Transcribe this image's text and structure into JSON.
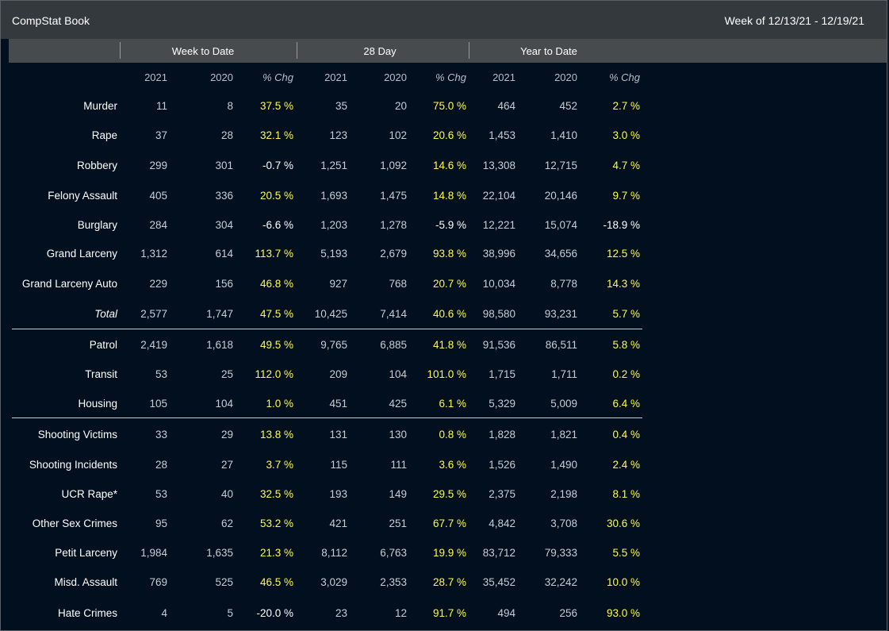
{
  "header": {
    "title": "CompStat Book",
    "week_range": "Week of 12/13/21 - 12/19/21"
  },
  "groups": [
    "Week to Date",
    "28 Day",
    "Year to Date"
  ],
  "columns": [
    "2021",
    "2020",
    "% Chg",
    "2021",
    "2020",
    "% Chg",
    "2021",
    "2020",
    "% Chg"
  ],
  "rows": [
    {
      "label": "Murder",
      "values": [
        "11",
        "8",
        "37.5 %",
        "35",
        "20",
        "75.0 %",
        "464",
        "452",
        "2.7 %"
      ]
    },
    {
      "label": "Rape",
      "values": [
        "37",
        "28",
        "32.1 %",
        "123",
        "102",
        "20.6 %",
        "1,453",
        "1,410",
        "3.0 %"
      ]
    },
    {
      "label": "Robbery",
      "values": [
        "299",
        "301",
        "-0.7 %",
        "1,251",
        "1,092",
        "14.6 %",
        "13,308",
        "12,715",
        "4.7 %"
      ]
    },
    {
      "label": "Felony Assault",
      "values": [
        "405",
        "336",
        "20.5 %",
        "1,693",
        "1,475",
        "14.8 %",
        "22,104",
        "20,146",
        "9.7 %"
      ]
    },
    {
      "label": "Burglary",
      "values": [
        "284",
        "304",
        "-6.6 %",
        "1,203",
        "1,278",
        "-5.9 %",
        "12,221",
        "15,074",
        "-18.9 %"
      ]
    },
    {
      "label": "Grand Larceny",
      "values": [
        "1,312",
        "614",
        "113.7 %",
        "5,193",
        "2,679",
        "93.8 %",
        "38,996",
        "34,656",
        "12.5 %"
      ]
    },
    {
      "label": "Grand Larceny Auto",
      "values": [
        "229",
        "156",
        "46.8 %",
        "927",
        "768",
        "20.7 %",
        "10,034",
        "8,778",
        "14.3 %"
      ]
    },
    {
      "label": "Total",
      "values": [
        "2,577",
        "1,747",
        "47.5 %",
        "10,425",
        "7,414",
        "40.6 %",
        "98,580",
        "93,231",
        "5.7 %"
      ]
    },
    {
      "label": "Patrol",
      "values": [
        "2,419",
        "1,618",
        "49.5 %",
        "9,765",
        "6,885",
        "41.8 %",
        "91,536",
        "86,511",
        "5.8 %"
      ]
    },
    {
      "label": "Transit",
      "values": [
        "53",
        "25",
        "112.0 %",
        "209",
        "104",
        "101.0 %",
        "1,715",
        "1,711",
        "0.2 %"
      ]
    },
    {
      "label": "Housing",
      "values": [
        "105",
        "104",
        "1.0 %",
        "451",
        "425",
        "6.1 %",
        "5,329",
        "5,009",
        "6.4 %"
      ]
    },
    {
      "label": "Shooting Victims",
      "values": [
        "33",
        "29",
        "13.8 %",
        "131",
        "130",
        "0.8 %",
        "1,828",
        "1,821",
        "0.4 %"
      ]
    },
    {
      "label": "Shooting Incidents",
      "values": [
        "28",
        "27",
        "3.7 %",
        "115",
        "111",
        "3.6 %",
        "1,526",
        "1,490",
        "2.4 %"
      ]
    },
    {
      "label": "UCR Rape*",
      "values": [
        "53",
        "40",
        "32.5 %",
        "193",
        "149",
        "29.5 %",
        "2,375",
        "2,198",
        "8.1 %"
      ]
    },
    {
      "label": "Other Sex Crimes",
      "values": [
        "95",
        "62",
        "53.2 %",
        "421",
        "251",
        "67.7 %",
        "4,842",
        "3,708",
        "30.6 %"
      ]
    },
    {
      "label": "Petit Larceny",
      "values": [
        "1,984",
        "1,635",
        "21.3 %",
        "8,112",
        "6,763",
        "19.9 %",
        "83,712",
        "79,333",
        "5.5 %"
      ]
    },
    {
      "label": "Misd. Assault",
      "values": [
        "769",
        "525",
        "46.5 %",
        "3,029",
        "2,353",
        "28.7 %",
        "35,452",
        "32,242",
        "10.0 %"
      ]
    },
    {
      "label": "Hate Crimes",
      "values": [
        "4",
        "5",
        "-20.0 %",
        "23",
        "12",
        "91.7 %",
        "494",
        "256",
        "93.0 %"
      ]
    }
  ],
  "colors": {
    "background": "#020f1e",
    "titlebar": "#34393e",
    "groupbar": "#484b4d",
    "positive_change": "#fffb44",
    "negative_change": "#ffffff",
    "value_text": "#c8cdd4"
  }
}
